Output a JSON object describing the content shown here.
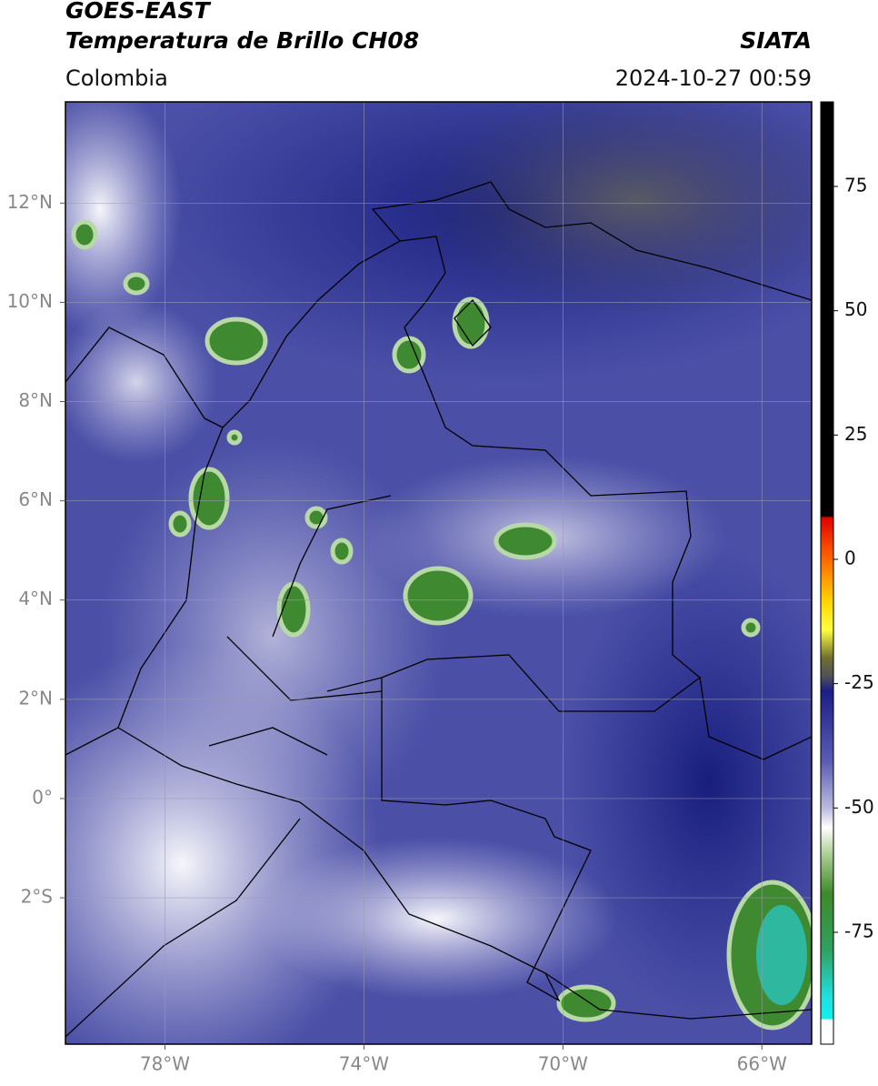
{
  "header": {
    "title": "GOES-EAST",
    "subtitle": "Temperatura de Brillo CH08",
    "source": "SIATA",
    "region": "Colombia",
    "datetime": "2024-10-27 00:59"
  },
  "map": {
    "xlim": [
      -80,
      -65
    ],
    "ylim": [
      -4.95,
      14.04
    ],
    "xticks": [
      {
        "value": -78,
        "label": "78°W"
      },
      {
        "value": -74,
        "label": "74°W"
      },
      {
        "value": -70,
        "label": "70°W"
      },
      {
        "value": -66,
        "label": "66°W"
      }
    ],
    "yticks": [
      {
        "value": 12,
        "label": "12°N"
      },
      {
        "value": 10,
        "label": "10°N"
      },
      {
        "value": 8,
        "label": "8°N"
      },
      {
        "value": 6,
        "label": "6°N"
      },
      {
        "value": 4,
        "label": "4°N"
      },
      {
        "value": 2,
        "label": "2°N"
      },
      {
        "value": 0,
        "label": "0°"
      },
      {
        "value": -2,
        "label": "2°S"
      }
    ]
  },
  "colorbar": {
    "range": [
      -97.5,
      92
    ],
    "ticks": [
      75,
      50,
      25,
      0,
      -25,
      -50,
      -75
    ]
  }
}
